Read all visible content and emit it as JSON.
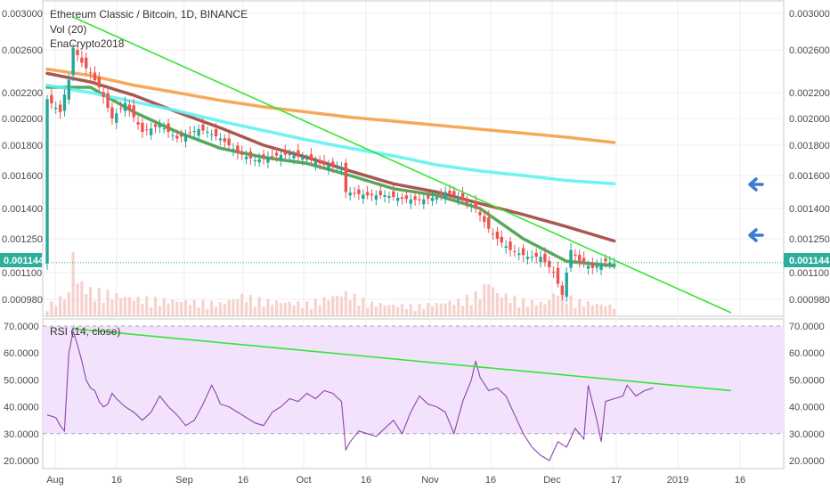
{
  "header": {
    "title": "Ethereum Classic / Bitcoin, 1D, BINANCE",
    "indicator_vol": "Vol (20)",
    "indicator_author": "EnaCrypto2018"
  },
  "price_badge": "0.001144",
  "colors": {
    "up": "#26a69a",
    "down": "#ef5350",
    "sma_green": "#43a047",
    "sma_brown": "#a0453e",
    "sma_cyan": "#5ff2f2",
    "sma_orange": "#f4a048",
    "trendline": "#33e633",
    "rsi_line": "#8e44ad",
    "rsi_band": "#f2e2fb",
    "badge": "#2bae9c",
    "arrow": "#3b7bd0"
  },
  "icons": [
    "left-arrow-icon"
  ],
  "chart_data": [
    {
      "type": "candlestick",
      "title": "Ethereum Classic / Bitcoin, 1D, BINANCE",
      "yticks": [
        "0.003000",
        "0.002600",
        "0.002200",
        "0.002000",
        "0.001800",
        "0.001600",
        "0.001400",
        "0.001250",
        "0.001100",
        "0.000980"
      ],
      "ylim": [
        0.00088,
        0.00305
      ],
      "current_price": 0.001144,
      "xticks": [
        "Aug",
        "16",
        "Sep",
        "16",
        "Oct",
        "16",
        "Nov",
        "16",
        "Dec",
        "17",
        "2019",
        "16"
      ],
      "close_path": [
        [
          0,
          0.00215
        ],
        [
          3,
          0.00205
        ],
        [
          5,
          0.00232
        ],
        [
          6,
          0.00262
        ],
        [
          7,
          0.00255
        ],
        [
          8,
          0.00248
        ],
        [
          10,
          0.00238
        ],
        [
          12,
          0.00225
        ],
        [
          15,
          0.002
        ],
        [
          18,
          0.00212
        ],
        [
          22,
          0.0019
        ],
        [
          26,
          0.00195
        ],
        [
          30,
          0.00185
        ],
        [
          35,
          0.00192
        ],
        [
          37,
          0.0019
        ],
        [
          40,
          0.00185
        ],
        [
          44,
          0.00175
        ],
        [
          48,
          0.0017
        ],
        [
          52,
          0.00173
        ],
        [
          56,
          0.00174
        ],
        [
          60,
          0.00171
        ],
        [
          64,
          0.00167
        ],
        [
          68,
          0.00165
        ],
        [
          69,
          0.0015
        ],
        [
          74,
          0.00148
        ],
        [
          78,
          0.00148
        ],
        [
          82,
          0.00146
        ],
        [
          86,
          0.00145
        ],
        [
          90,
          0.00147
        ],
        [
          92,
          0.0015
        ],
        [
          95,
          0.00147
        ],
        [
          99,
          0.0014
        ],
        [
          102,
          0.0013
        ],
        [
          104,
          0.00125
        ],
        [
          107,
          0.0012
        ],
        [
          111,
          0.00117
        ],
        [
          114,
          0.00117
        ],
        [
          117,
          0.0011
        ],
        [
          119,
          0.001
        ],
        [
          121,
          0.0012
        ],
        [
          123,
          0.00115
        ],
        [
          126,
          0.00112
        ],
        [
          129,
          0.00115
        ],
        [
          131,
          0.00114
        ]
      ],
      "volume_path": [
        [
          0,
          4
        ],
        [
          5,
          9
        ],
        [
          6,
          26
        ],
        [
          7,
          14
        ],
        [
          10,
          10
        ],
        [
          14,
          9
        ],
        [
          20,
          7
        ],
        [
          30,
          6
        ],
        [
          40,
          5
        ],
        [
          45,
          8
        ],
        [
          50,
          6
        ],
        [
          60,
          5
        ],
        [
          69,
          9
        ],
        [
          75,
          5
        ],
        [
          85,
          4
        ],
        [
          95,
          6
        ],
        [
          100,
          9
        ],
        [
          102,
          14
        ],
        [
          104,
          9
        ],
        [
          110,
          6
        ],
        [
          115,
          5
        ],
        [
          118,
          10
        ],
        [
          122,
          6
        ],
        [
          126,
          5
        ],
        [
          131,
          4
        ]
      ],
      "series": [
        {
          "name": "SMA green",
          "points": [
            [
              0,
              0.00225
            ],
            [
              10,
              0.00225
            ],
            [
              20,
              0.00205
            ],
            [
              30,
              0.0019
            ],
            [
              40,
              0.00178
            ],
            [
              50,
              0.00172
            ],
            [
              60,
              0.00168
            ],
            [
              70,
              0.0016
            ],
            [
              80,
              0.00152
            ],
            [
              90,
              0.00148
            ],
            [
              100,
              0.0014
            ],
            [
              110,
              0.00125
            ],
            [
              120,
              0.00115
            ],
            [
              131,
              0.00113
            ]
          ]
        },
        {
          "name": "SMA brown",
          "points": [
            [
              0,
              0.00238
            ],
            [
              10,
              0.0023
            ],
            [
              20,
              0.00218
            ],
            [
              30,
              0.00205
            ],
            [
              40,
              0.00193
            ],
            [
              50,
              0.0018
            ],
            [
              60,
              0.00172
            ],
            [
              70,
              0.00163
            ],
            [
              80,
              0.00155
            ],
            [
              90,
              0.0015
            ],
            [
              100,
              0.00143
            ],
            [
              110,
              0.00137
            ],
            [
              120,
              0.00131
            ],
            [
              131,
              0.00124
            ]
          ]
        },
        {
          "name": "SMA cyan",
          "points": [
            [
              0,
              0.00227
            ],
            [
              10,
              0.0022
            ],
            [
              20,
              0.00213
            ],
            [
              30,
              0.00206
            ],
            [
              40,
              0.00198
            ],
            [
              50,
              0.00191
            ],
            [
              60,
              0.00184
            ],
            [
              70,
              0.00178
            ],
            [
              80,
              0.00173
            ],
            [
              90,
              0.00167
            ],
            [
              100,
              0.00163
            ],
            [
              110,
              0.0016
            ],
            [
              120,
              0.00157
            ],
            [
              131,
              0.00155
            ]
          ]
        },
        {
          "name": "SMA orange",
          "points": [
            [
              0,
              0.00242
            ],
            [
              10,
              0.00236
            ],
            [
              20,
              0.00227
            ],
            [
              30,
              0.0022
            ],
            [
              40,
              0.00214
            ],
            [
              50,
              0.00209
            ],
            [
              60,
              0.00205
            ],
            [
              70,
              0.00201
            ],
            [
              80,
              0.00198
            ],
            [
              90,
              0.00195
            ],
            [
              100,
              0.00192
            ],
            [
              110,
              0.00189
            ],
            [
              120,
              0.00186
            ],
            [
              131,
              0.00182
            ]
          ]
        },
        {
          "name": "Trendline",
          "points": [
            [
              6,
              0.00296
            ],
            [
              158,
              0.00092
            ]
          ]
        }
      ]
    },
    {
      "type": "line",
      "title": "RSI (14, close)",
      "yticks": [
        "70.0000",
        "60.0000",
        "50.0000",
        "40.0000",
        "30.0000",
        "20.0000"
      ],
      "ylim": [
        17,
        72
      ],
      "band": [
        30,
        70
      ],
      "rsi_path": [
        [
          0,
          37
        ],
        [
          2,
          36
        ],
        [
          3,
          33
        ],
        [
          4,
          31
        ],
        [
          5,
          60
        ],
        [
          6,
          68
        ],
        [
          7,
          63
        ],
        [
          8,
          57
        ],
        [
          9,
          50
        ],
        [
          10,
          47
        ],
        [
          11,
          46
        ],
        [
          12,
          42
        ],
        [
          13,
          40
        ],
        [
          14,
          41
        ],
        [
          15,
          45
        ],
        [
          16,
          43
        ],
        [
          18,
          40
        ],
        [
          20,
          38
        ],
        [
          22,
          35
        ],
        [
          24,
          38
        ],
        [
          26,
          44
        ],
        [
          28,
          40
        ],
        [
          30,
          37
        ],
        [
          32,
          33
        ],
        [
          34,
          35
        ],
        [
          36,
          41
        ],
        [
          38,
          48
        ],
        [
          39,
          45
        ],
        [
          40,
          41
        ],
        [
          42,
          40
        ],
        [
          44,
          38
        ],
        [
          46,
          36
        ],
        [
          48,
          34
        ],
        [
          50,
          33
        ],
        [
          52,
          38
        ],
        [
          54,
          40
        ],
        [
          56,
          43
        ],
        [
          58,
          42
        ],
        [
          60,
          45
        ],
        [
          62,
          43
        ],
        [
          64,
          46
        ],
        [
          66,
          45
        ],
        [
          68,
          42
        ],
        [
          69,
          24
        ],
        [
          70,
          27
        ],
        [
          72,
          31
        ],
        [
          74,
          30
        ],
        [
          76,
          29
        ],
        [
          78,
          32
        ],
        [
          80,
          35
        ],
        [
          82,
          30
        ],
        [
          84,
          38
        ],
        [
          86,
          44
        ],
        [
          88,
          41
        ],
        [
          90,
          40
        ],
        [
          92,
          38
        ],
        [
          94,
          30
        ],
        [
          96,
          42
        ],
        [
          98,
          50
        ],
        [
          99,
          57
        ],
        [
          100,
          51
        ],
        [
          102,
          46
        ],
        [
          104,
          47
        ],
        [
          106,
          44
        ],
        [
          108,
          37
        ],
        [
          110,
          30
        ],
        [
          112,
          25
        ],
        [
          114,
          22
        ],
        [
          116,
          20
        ],
        [
          118,
          27
        ],
        [
          120,
          25
        ],
        [
          122,
          32
        ],
        [
          124,
          28
        ],
        [
          125,
          48
        ],
        [
          127,
          35
        ],
        [
          128,
          27
        ],
        [
          129,
          42
        ],
        [
          131,
          43
        ],
        [
          133,
          44
        ],
        [
          134,
          48
        ],
        [
          136,
          44
        ],
        [
          138,
          46
        ],
        [
          140,
          47
        ]
      ],
      "trendline": [
        [
          6,
          69
        ],
        [
          158,
          46
        ]
      ]
    }
  ]
}
